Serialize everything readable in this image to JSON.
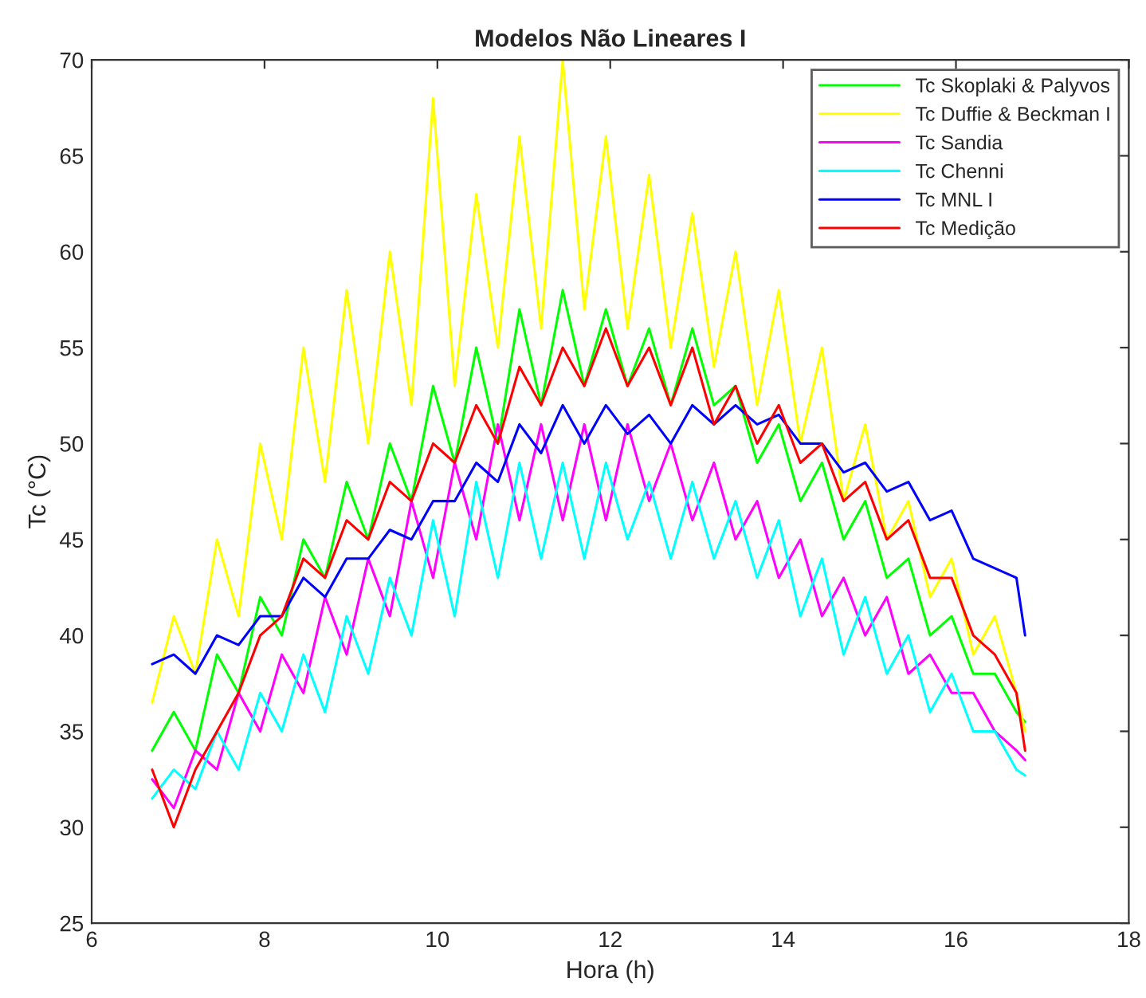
{
  "chart_data": {
    "type": "line",
    "title": "Modelos Não Lineares I",
    "xlabel": "Hora (h)",
    "ylabel": "Tc (°C)",
    "x": [
      6.7,
      6.95,
      7.2,
      7.45,
      7.7,
      7.95,
      8.2,
      8.45,
      8.7,
      8.95,
      9.2,
      9.45,
      9.7,
      9.95,
      10.2,
      10.45,
      10.7,
      10.95,
      11.2,
      11.45,
      11.7,
      11.95,
      12.2,
      12.45,
      12.7,
      12.95,
      13.2,
      13.45,
      13.7,
      13.95,
      14.2,
      14.45,
      14.7,
      14.95,
      15.2,
      15.45,
      15.7,
      15.95,
      16.2,
      16.45,
      16.7,
      16.8
    ],
    "series": [
      {
        "name": "Tc Skoplaki & Palyvos",
        "color": "#00ff00",
        "values": [
          34,
          36,
          34,
          39,
          37,
          42,
          40,
          45,
          43,
          48,
          45,
          50,
          47,
          53,
          49,
          55,
          50,
          57,
          52,
          58,
          53,
          57,
          53,
          56,
          52,
          56,
          52,
          53,
          49,
          51,
          47,
          49,
          45,
          47,
          43,
          44,
          40,
          41,
          38,
          38,
          36,
          35.5
        ]
      },
      {
        "name": "Tc Duffie & Beckman I",
        "color": "#ffff00",
        "values": [
          36.5,
          41,
          38,
          45,
          41,
          50,
          45,
          55,
          48,
          58,
          50,
          60,
          52,
          68,
          53,
          63,
          55,
          66,
          56,
          70,
          57,
          66,
          56,
          64,
          55,
          62,
          54,
          60,
          52,
          58,
          50,
          55,
          47,
          51,
          45,
          47,
          42,
          44,
          39,
          41,
          37,
          35
        ]
      },
      {
        "name": "Tc Sandia",
        "color": "#ff00ff",
        "values": [
          32.5,
          31,
          34,
          33,
          37,
          35,
          39,
          37,
          42,
          39,
          44,
          41,
          47,
          43,
          49,
          45,
          51,
          46,
          51,
          46,
          51,
          46,
          51,
          47,
          50,
          46,
          49,
          45,
          47,
          43,
          45,
          41,
          43,
          40,
          42,
          38,
          39,
          37,
          37,
          35,
          34,
          33.5
        ]
      },
      {
        "name": "Tc Chenni",
        "color": "#00ffff",
        "values": [
          31.5,
          33,
          32,
          35,
          33,
          37,
          35,
          39,
          36,
          41,
          38,
          43,
          40,
          46,
          41,
          48,
          43,
          49,
          44,
          49,
          44,
          49,
          45,
          48,
          44,
          48,
          44,
          47,
          43,
          46,
          41,
          44,
          39,
          42,
          38,
          40,
          36,
          38,
          35,
          35,
          33,
          32.7
        ]
      },
      {
        "name": "Tc MNL I",
        "color": "#0000ff",
        "values": [
          38.5,
          39,
          38,
          40,
          39.5,
          41,
          41,
          43,
          42,
          44,
          44,
          45.5,
          45,
          47,
          47,
          49,
          48,
          51,
          49.5,
          52,
          50,
          52,
          50.5,
          51.5,
          50,
          52,
          51,
          52,
          51,
          51.5,
          50,
          50,
          48.5,
          49,
          47.5,
          48,
          46,
          46.5,
          44,
          43.5,
          43,
          40
        ]
      },
      {
        "name": "Tc Medição",
        "color": "#ff0000",
        "values": [
          33,
          30,
          33,
          35,
          37,
          40,
          41,
          44,
          43,
          46,
          45,
          48,
          47,
          50,
          49,
          52,
          50,
          54,
          52,
          55,
          53,
          56,
          53,
          55,
          52,
          55,
          51,
          53,
          50,
          52,
          49,
          50,
          47,
          48,
          45,
          46,
          43,
          43,
          40,
          39,
          37,
          34
        ]
      }
    ],
    "xlim": [
      6,
      18
    ],
    "xticks": [
      6,
      8,
      10,
      12,
      14,
      16,
      18
    ],
    "ylim": [
      25,
      70
    ],
    "yticks": [
      25,
      30,
      35,
      40,
      45,
      50,
      55,
      60,
      65,
      70
    ],
    "legend": "top right",
    "grid": false
  }
}
